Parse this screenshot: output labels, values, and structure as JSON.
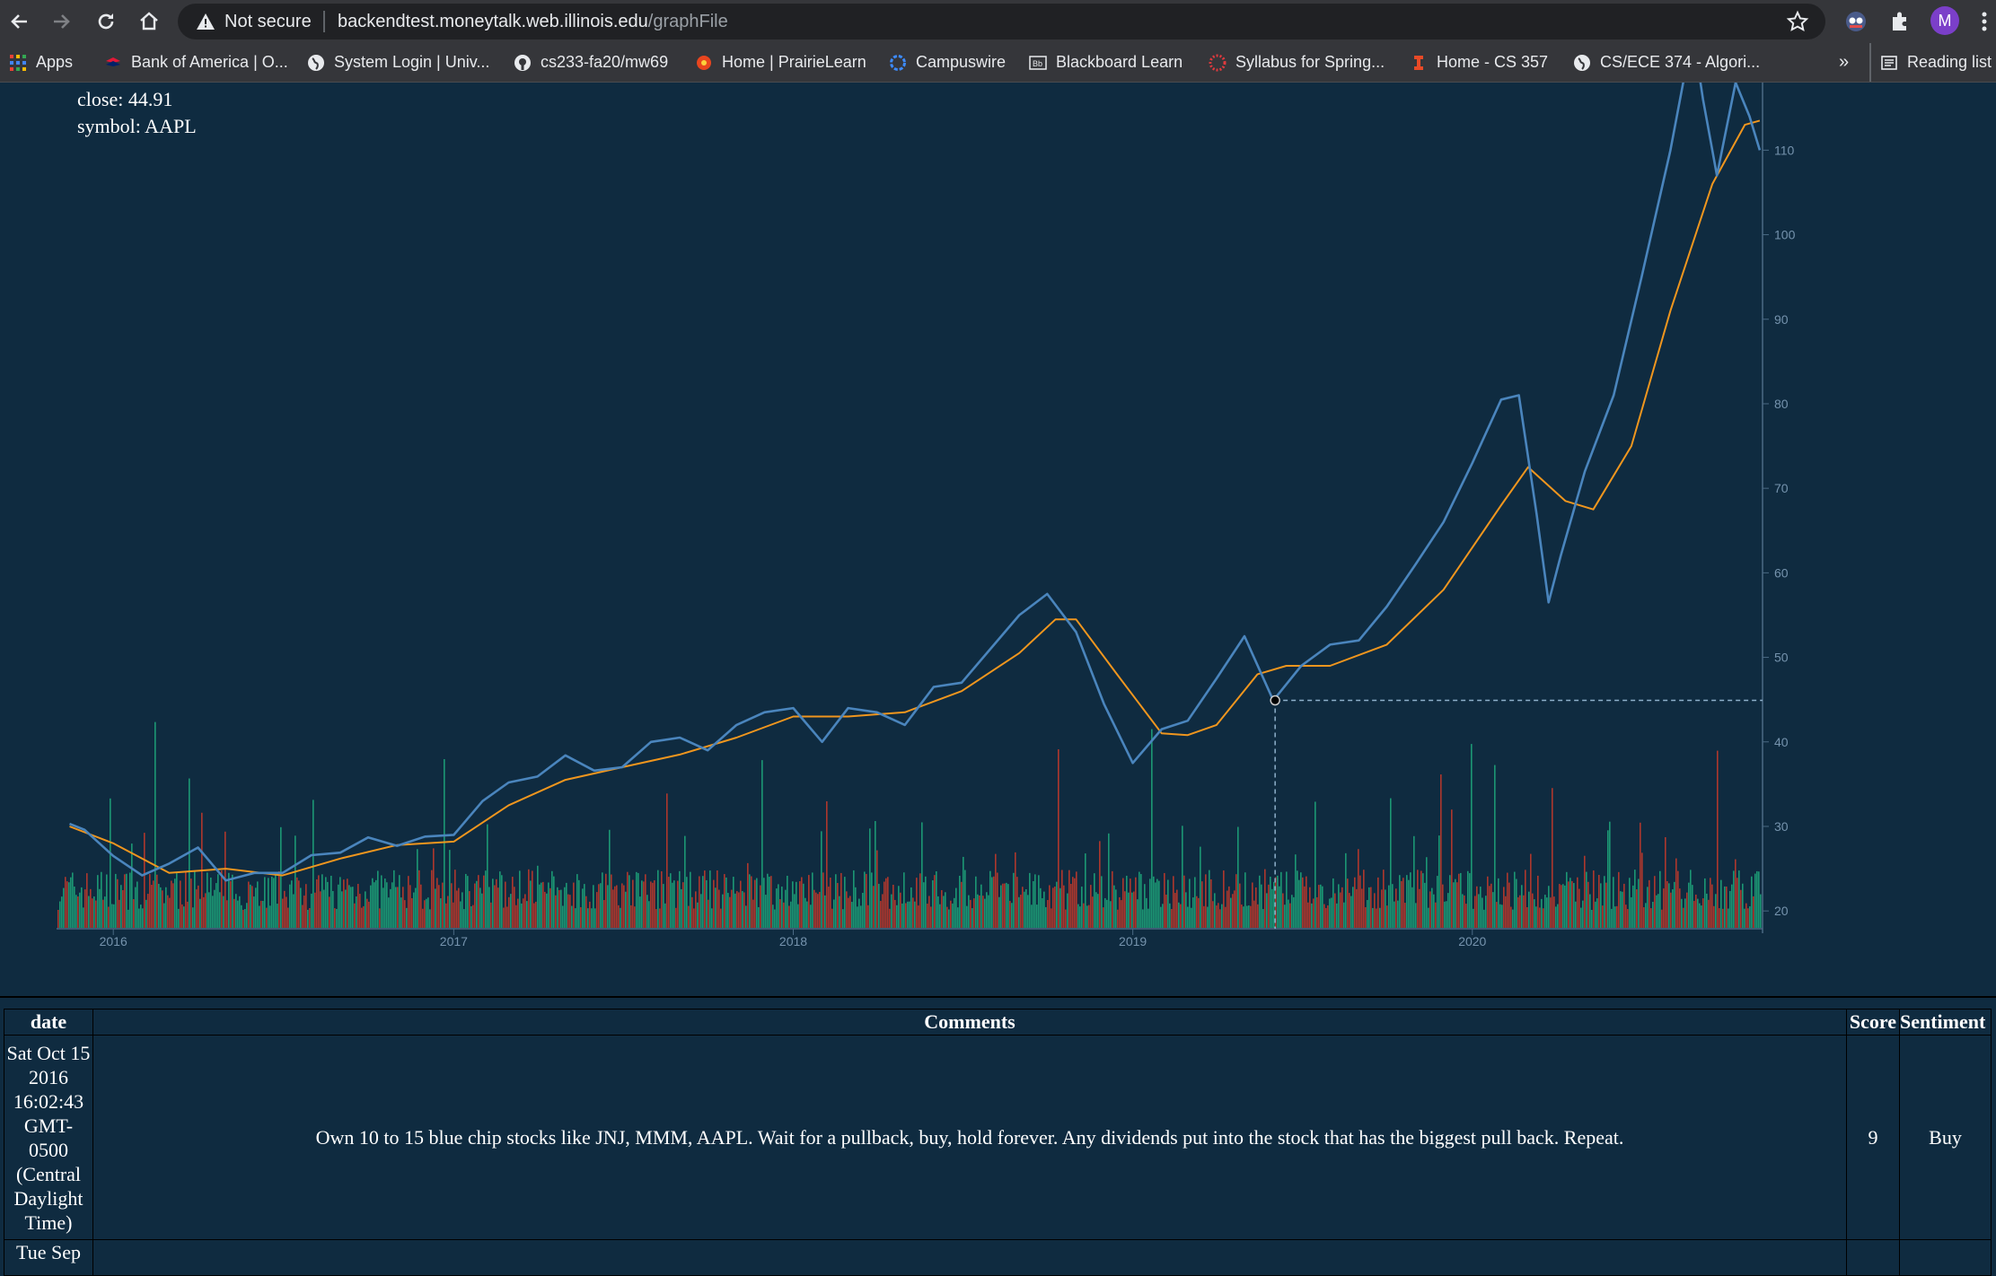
{
  "browser": {
    "security_label": "Not secure",
    "url_host": "backendtest.moneytalk.web.illinois.edu",
    "url_path": "/graphFile",
    "profile_initial": "M",
    "bookmarks": [
      {
        "label": "Apps",
        "icon": "apps-grid-icon"
      },
      {
        "label": "Bank of America | O...",
        "icon": "bank-of-america-icon"
      },
      {
        "label": "System Login | Univ...",
        "icon": "globe-icon"
      },
      {
        "label": "cs233-fa20/mw69",
        "icon": "github-icon"
      },
      {
        "label": "Home | PrairieLearn",
        "icon": "prairielearn-icon"
      },
      {
        "label": "Campuswire",
        "icon": "campuswire-icon"
      },
      {
        "label": "Blackboard Learn",
        "icon": "blackboard-icon"
      },
      {
        "label": "Syllabus for Spring...",
        "icon": "canvas-icon"
      },
      {
        "label": "Home - CS 357",
        "icon": "illinois-icon"
      },
      {
        "label": "CS/ECE 374 - Algori...",
        "icon": "globe-icon"
      }
    ],
    "overflow_label": "»",
    "reading_list_label": "Reading list"
  },
  "chart": {
    "tooltip": {
      "close": "close: 44.91",
      "symbol": "symbol: AAPL"
    },
    "colors": {
      "price": "#4a85bd",
      "ma": "#f0961e",
      "vol_up": "#1ea37a",
      "vol_down": "#c0392b",
      "axis": "#4b6a84",
      "crosshair": "#8fb1cc"
    }
  },
  "chart_data": {
    "type": "line",
    "symbol": "AAPL",
    "x_ticks": [
      "2016",
      "2017",
      "2018",
      "2019",
      "2020"
    ],
    "y_ticks": [
      20,
      30,
      40,
      50,
      60,
      70,
      80,
      90,
      100,
      110
    ],
    "ylim": [
      18,
      118
    ],
    "highlight": {
      "date": "2019-06-03",
      "close": 44.91
    },
    "series": [
      {
        "points": [
          [
            "2015-11-15",
            30.3
          ],
          [
            "2015-12-01",
            29.6
          ],
          [
            "2016-01-01",
            26.5
          ],
          [
            "2016-02-01",
            24.2
          ],
          [
            "2016-03-01",
            25.6
          ],
          [
            "2016-04-01",
            27.5
          ],
          [
            "2016-05-01",
            23.6
          ],
          [
            "2016-06-01",
            24.5
          ],
          [
            "2016-07-01",
            24.5
          ],
          [
            "2016-08-01",
            26.6
          ],
          [
            "2016-09-01",
            26.9
          ],
          [
            "2016-10-01",
            28.7
          ],
          [
            "2016-11-01",
            27.7
          ],
          [
            "2016-12-01",
            28.8
          ],
          [
            "2017-01-01",
            29.0
          ],
          [
            "2017-02-01",
            33.0
          ],
          [
            "2017-03-01",
            35.2
          ],
          [
            "2017-04-01",
            35.9
          ],
          [
            "2017-05-01",
            38.4
          ],
          [
            "2017-06-01",
            36.6
          ],
          [
            "2017-07-01",
            37.0
          ],
          [
            "2017-08-01",
            40.0
          ],
          [
            "2017-09-01",
            40.5
          ],
          [
            "2017-10-01",
            39.0
          ],
          [
            "2017-11-01",
            42.0
          ],
          [
            "2017-12-01",
            43.5
          ],
          [
            "2018-01-01",
            44.0
          ],
          [
            "2018-02-01",
            40.0
          ],
          [
            "2018-03-01",
            44.0
          ],
          [
            "2018-04-01",
            43.5
          ],
          [
            "2018-05-01",
            42.0
          ],
          [
            "2018-06-01",
            46.5
          ],
          [
            "2018-07-01",
            47.0
          ],
          [
            "2018-08-01",
            51.0
          ],
          [
            "2018-09-01",
            55.0
          ],
          [
            "2018-10-01",
            57.5
          ],
          [
            "2018-11-01",
            53.0
          ],
          [
            "2018-12-01",
            44.5
          ],
          [
            "2019-01-01",
            37.5
          ],
          [
            "2019-02-01",
            41.5
          ],
          [
            "2019-03-01",
            42.5
          ],
          [
            "2019-04-01",
            47.5
          ],
          [
            "2019-05-01",
            52.5
          ],
          [
            "2019-06-01",
            44.9
          ],
          [
            "2019-07-01",
            49.0
          ],
          [
            "2019-08-01",
            51.5
          ],
          [
            "2019-09-01",
            52.0
          ],
          [
            "2019-10-01",
            56.0
          ],
          [
            "2019-11-01",
            61.0
          ],
          [
            "2019-12-01",
            66.0
          ],
          [
            "2020-01-01",
            73.0
          ],
          [
            "2020-02-01",
            80.5
          ],
          [
            "2020-02-20",
            81.0
          ],
          [
            "2020-03-10",
            67.0
          ],
          [
            "2020-03-23",
            56.5
          ],
          [
            "2020-04-05",
            62.0
          ],
          [
            "2020-05-01",
            72.0
          ],
          [
            "2020-06-01",
            81.0
          ],
          [
            "2020-07-01",
            95.0
          ],
          [
            "2020-08-01",
            110.0
          ],
          [
            "2020-08-25",
            124.0
          ],
          [
            "2020-09-05",
            116.0
          ],
          [
            "2020-09-20",
            107.0
          ],
          [
            "2020-10-10",
            118.0
          ],
          [
            "2020-10-25",
            114.0
          ],
          [
            "2020-11-05",
            110.0
          ]
        ]
      },
      {
        "points": [
          [
            "2015-11-15",
            30.0
          ],
          [
            "2016-01-01",
            28.0
          ],
          [
            "2016-03-01",
            24.5
          ],
          [
            "2016-05-01",
            25.0
          ],
          [
            "2016-07-01",
            24.2
          ],
          [
            "2016-09-01",
            26.2
          ],
          [
            "2016-11-01",
            27.8
          ],
          [
            "2017-01-01",
            28.2
          ],
          [
            "2017-03-01",
            32.5
          ],
          [
            "2017-05-01",
            35.5
          ],
          [
            "2017-07-01",
            37.0
          ],
          [
            "2017-09-01",
            38.5
          ],
          [
            "2017-11-01",
            40.5
          ],
          [
            "2018-01-01",
            43.0
          ],
          [
            "2018-03-01",
            43.0
          ],
          [
            "2018-05-01",
            43.5
          ],
          [
            "2018-07-01",
            46.0
          ],
          [
            "2018-09-01",
            50.5
          ],
          [
            "2018-10-10",
            54.5
          ],
          [
            "2018-11-01",
            54.5
          ],
          [
            "2018-12-15",
            48.0
          ],
          [
            "2019-02-01",
            41.0
          ],
          [
            "2019-03-01",
            40.8
          ],
          [
            "2019-04-01",
            42.0
          ],
          [
            "2019-05-15",
            48.0
          ],
          [
            "2019-06-15",
            49.0
          ],
          [
            "2019-08-01",
            49.0
          ],
          [
            "2019-10-01",
            51.5
          ],
          [
            "2019-12-01",
            58.0
          ],
          [
            "2020-02-01",
            68.0
          ],
          [
            "2020-03-01",
            72.5
          ],
          [
            "2020-04-10",
            68.5
          ],
          [
            "2020-05-10",
            67.5
          ],
          [
            "2020-06-20",
            75.0
          ],
          [
            "2020-08-01",
            91.0
          ],
          [
            "2020-09-15",
            106.0
          ],
          [
            "2020-10-20",
            113.0
          ],
          [
            "2020-11-05",
            113.5
          ]
        ]
      }
    ]
  },
  "table": {
    "headers": [
      "date",
      "Comments",
      "Score",
      "Sentiment"
    ],
    "rows": [
      {
        "date": "Sat Oct 15 2016 16:02:43 GMT-0500 (Central Daylight Time)",
        "comment": "Own 10 to 15 blue chip stocks like JNJ, MMM, AAPL. Wait for a pullback, buy, hold forever. Any dividends put into the stock that has the biggest pull back. Repeat.",
        "score": "9",
        "sentiment": "Buy"
      },
      {
        "date": "Tue Sep",
        "comment": "",
        "score": "",
        "sentiment": ""
      }
    ]
  }
}
